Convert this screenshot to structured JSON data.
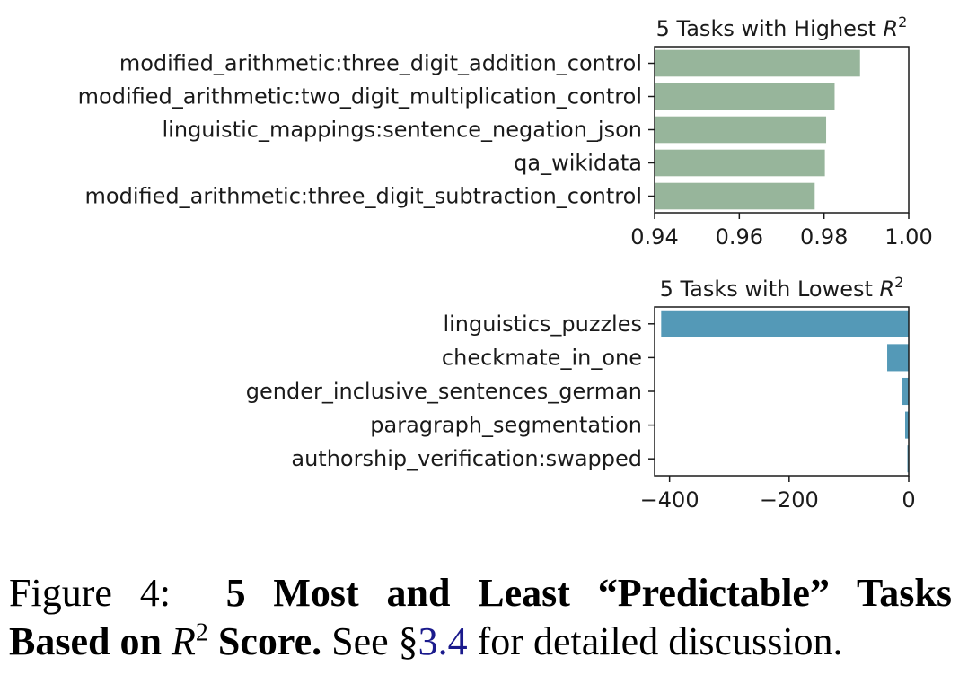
{
  "chart_data": [
    {
      "type": "bar",
      "orientation": "horizontal",
      "title_prefix": "5 Tasks with Highest ",
      "title_var": "R",
      "title_sup": "2",
      "categories": [
        "modified_arithmetic:three_digit_addition_control",
        "modified_arithmetic:two_digit_multiplication_control",
        "linguistic_mappings:sentence_negation_json",
        "qa_wikidata",
        "modified_arithmetic:three_digit_subtraction_control"
      ],
      "values": [
        0.9885,
        0.9825,
        0.9805,
        0.9802,
        0.9778
      ],
      "xlim": [
        0.94,
        1.0
      ],
      "xticks": [
        "0.94",
        "0.96",
        "0.98",
        "1.00"
      ],
      "xtick_values": [
        0.94,
        0.96,
        0.98,
        1.0
      ],
      "bar_color": "#97b59b",
      "grid": false
    },
    {
      "type": "bar",
      "orientation": "horizontal",
      "title_prefix": "5 Tasks with Lowest ",
      "title_var": "R",
      "title_sup": "2",
      "categories": [
        "linguistics_puzzles",
        "checkmate_in_one",
        "gender_inclusive_sentences_german",
        "paragraph_segmentation",
        "authorship_verification:swapped"
      ],
      "values": [
        -414,
        -36,
        -12,
        -6,
        -1
      ],
      "xlim": [
        -425,
        0
      ],
      "xticks": [
        "−400",
        "−200",
        "0"
      ],
      "xtick_values": [
        -400,
        -200,
        0
      ],
      "bar_color": "#5499b7",
      "grid": false
    }
  ],
  "caption": {
    "label": "Figure 4:",
    "bold_part1": "5 Most and Least “Predictable” Tasks",
    "bold_part2a": "Based on ",
    "var": "R",
    "sup": "2",
    "bold_part2b": " Score.",
    "text1": " See §",
    "ref": "3.4",
    "text2": " for detailed discussion."
  }
}
